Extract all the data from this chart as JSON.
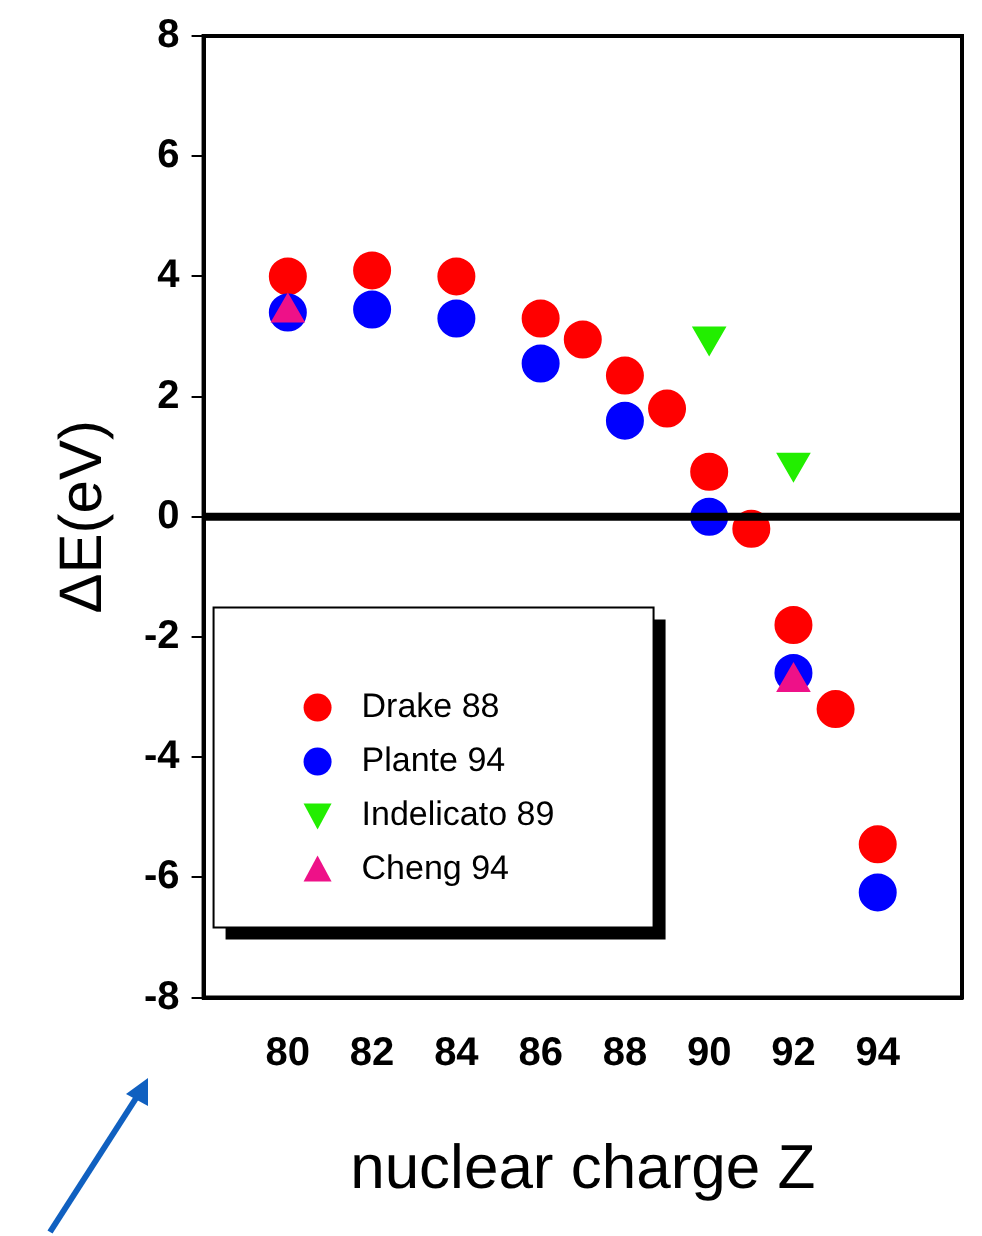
{
  "chart_data": {
    "type": "scatter",
    "xlabel": "nuclear charge Z",
    "ylabel": "ΔE(eV)",
    "xlim": [
      78,
      96
    ],
    "xticks": [
      80,
      82,
      84,
      86,
      88,
      90,
      92,
      94
    ],
    "ylim": [
      -8,
      8
    ],
    "yticks": [
      -8,
      -6,
      -4,
      -2,
      0,
      2,
      4,
      6,
      8
    ],
    "grid": false,
    "legend": "bottom left",
    "ref_lines": [
      {
        "axis": "y",
        "value": 0,
        "color": "#000000"
      }
    ],
    "series": [
      {
        "name": "Drake 88",
        "color": "#ff0000",
        "marker": "circle",
        "x": [
          80,
          82,
          84,
          86,
          87,
          88,
          89,
          90,
          91,
          92,
          93,
          94
        ],
        "values": [
          4.0,
          4.1,
          4.0,
          3.3,
          2.95,
          2.35,
          1.8,
          0.75,
          -0.2,
          -1.8,
          -3.2,
          -5.45
        ]
      },
      {
        "name": "Plante 94",
        "color": "#0000ff",
        "marker": "circle",
        "x": [
          80,
          82,
          84,
          86,
          88,
          90,
          92,
          94
        ],
        "values": [
          3.4,
          3.45,
          3.3,
          2.55,
          1.6,
          0,
          -2.6,
          -6.25
        ]
      },
      {
        "name": "Indelicato 89",
        "color": "#22ee00",
        "marker": "triangle-down",
        "x": [
          90,
          92
        ],
        "values": [
          3.0,
          0.9
        ]
      },
      {
        "name": "Cheng 94",
        "color": "#ee1188",
        "marker": "triangle",
        "x": [
          80,
          92
        ],
        "values": [
          3.4,
          -2.75
        ]
      }
    ]
  }
}
